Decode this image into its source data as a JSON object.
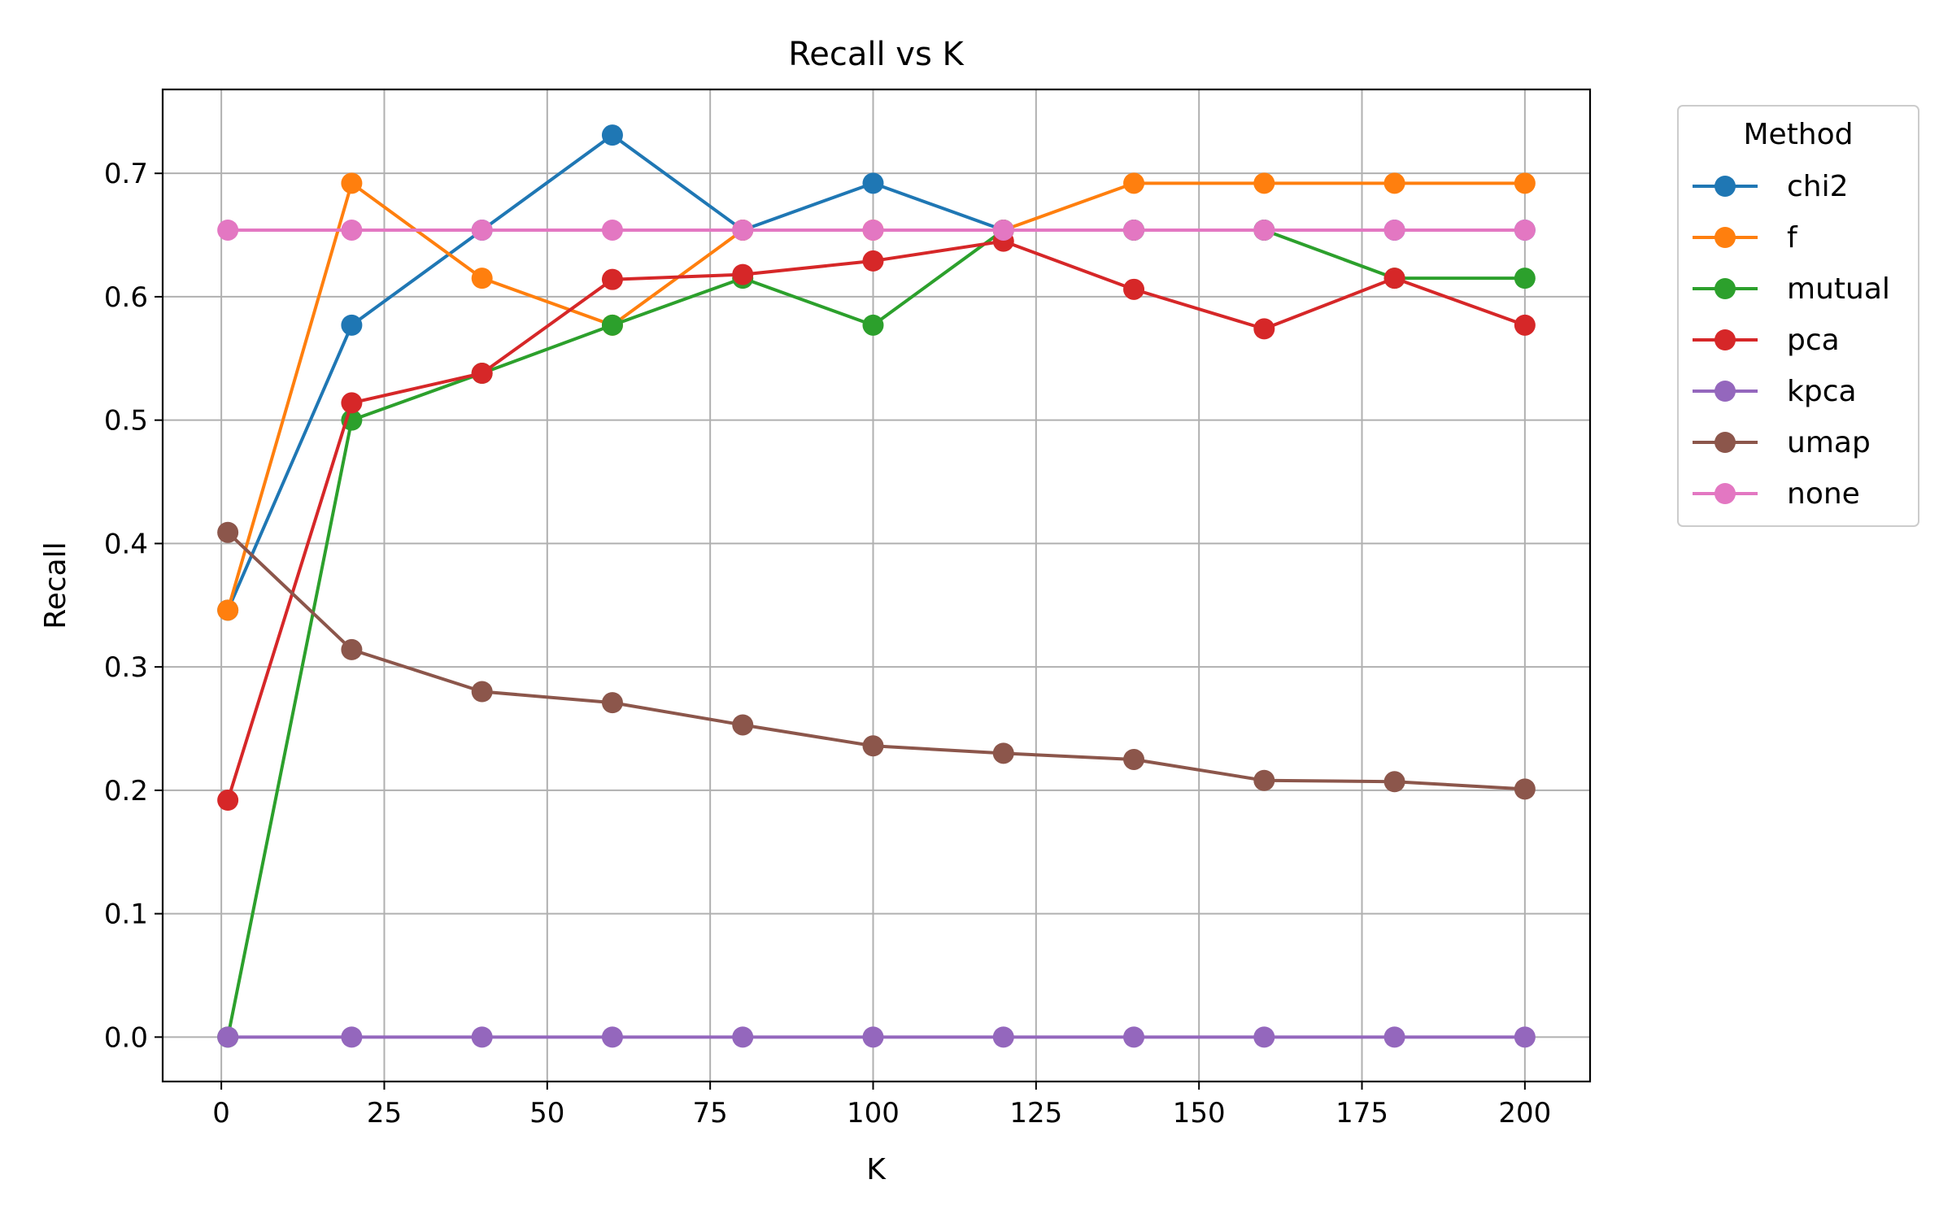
{
  "chart_data": {
    "type": "line",
    "title": "Recall vs K",
    "xlabel": "K",
    "ylabel": "Recall",
    "xlim": [
      -9,
      210
    ],
    "ylim": [
      -0.036,
      0.768
    ],
    "xticks": [
      0,
      25,
      50,
      75,
      100,
      125,
      150,
      175,
      200
    ],
    "xtick_labels": [
      "0",
      "25",
      "50",
      "75",
      "100",
      "125",
      "150",
      "175",
      "200"
    ],
    "yticks": [
      0.0,
      0.1,
      0.2,
      0.3,
      0.4,
      0.5,
      0.6,
      0.7
    ],
    "ytick_labels": [
      "0.0",
      "0.1",
      "0.2",
      "0.3",
      "0.4",
      "0.5",
      "0.6",
      "0.7"
    ],
    "grid": true,
    "legend_title": "Method",
    "legend_position": "outside-right-top",
    "x": [
      1,
      20,
      40,
      60,
      80,
      100,
      120,
      140,
      160,
      180,
      200
    ],
    "series": [
      {
        "name": "chi2",
        "color": "#1f77b4",
        "values": [
          0.346,
          0.577,
          0.654,
          0.731,
          0.654,
          0.692,
          0.654,
          0.654,
          0.654,
          0.654,
          0.654
        ]
      },
      {
        "name": "f",
        "color": "#ff7f0e",
        "values": [
          0.346,
          0.692,
          0.615,
          0.577,
          0.654,
          0.654,
          0.654,
          0.692,
          0.692,
          0.692,
          0.692
        ]
      },
      {
        "name": "mutual",
        "color": "#2ca02c",
        "values": [
          0.0,
          0.5,
          0.538,
          0.577,
          0.615,
          0.577,
          0.654,
          0.654,
          0.654,
          0.615,
          0.615
        ]
      },
      {
        "name": "pca",
        "color": "#d62728",
        "values": [
          0.192,
          0.514,
          0.538,
          0.614,
          0.618,
          0.629,
          0.645,
          0.606,
          0.574,
          0.615,
          0.577
        ]
      },
      {
        "name": "kpca",
        "color": "#9467bd",
        "values": [
          0.0,
          0.0,
          0.0,
          0.0,
          0.0,
          0.0,
          0.0,
          0.0,
          0.0,
          0.0,
          0.0
        ]
      },
      {
        "name": "umap",
        "color": "#8c564b",
        "values": [
          0.409,
          0.314,
          0.28,
          0.271,
          0.253,
          0.236,
          0.23,
          0.225,
          0.208,
          0.207,
          0.201
        ]
      },
      {
        "name": "none",
        "color": "#e377c2",
        "values": [
          0.654,
          0.654,
          0.654,
          0.654,
          0.654,
          0.654,
          0.654,
          0.654,
          0.654,
          0.654,
          0.654
        ]
      }
    ]
  }
}
